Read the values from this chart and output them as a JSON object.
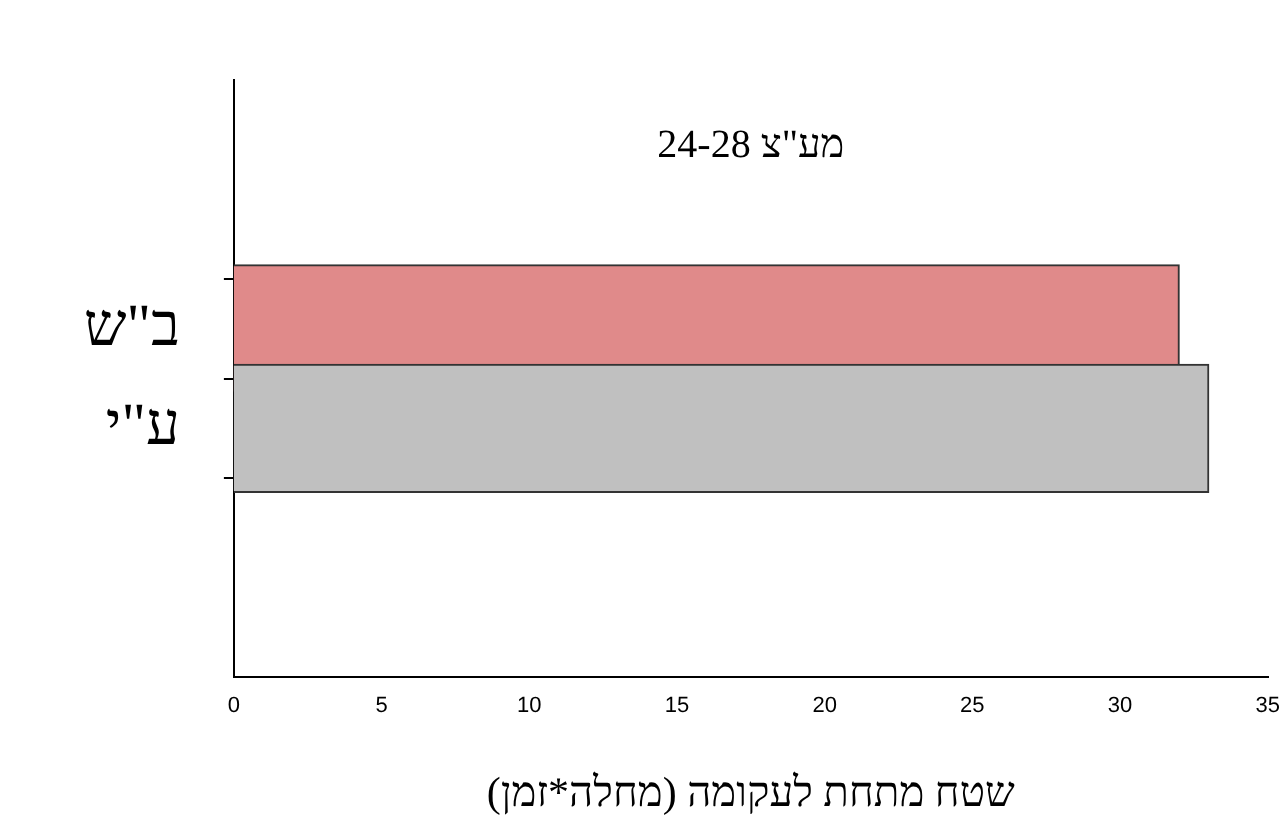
{
  "chart_data": {
    "type": "bar",
    "orientation": "horizontal",
    "title": "24-28 מע\"צ",
    "xlabel": "שטח מתחת לעקומה (מחלה*זמן)",
    "categories": [
      "ב\"ש",
      "ע\"י"
    ],
    "values": [
      32,
      33
    ],
    "colors": [
      "#e08a8a",
      "#c0c0c0"
    ],
    "xlim": [
      0,
      35
    ],
    "xticks": [
      0,
      5,
      10,
      15,
      20,
      25,
      30,
      35
    ],
    "grid": false,
    "legend": false
  }
}
